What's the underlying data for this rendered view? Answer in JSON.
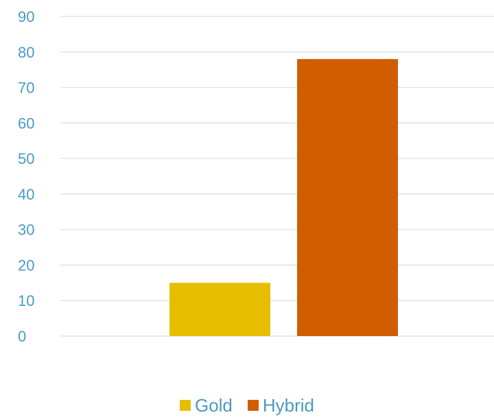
{
  "chart_data": {
    "type": "bar",
    "title": "",
    "xlabel": "",
    "ylabel": "",
    "ylim": [
      0,
      90
    ],
    "yticks": [
      0,
      10,
      20,
      30,
      40,
      50,
      60,
      70,
      80,
      90
    ],
    "grid": true,
    "legend_position": "bottom",
    "series": [
      {
        "name": "Gold",
        "value": 15,
        "color": "#E6BE00"
      },
      {
        "name": "Hybrid",
        "value": 78,
        "color": "#D05E00"
      }
    ]
  },
  "colors": {
    "gridline": "#D9E6EE",
    "axis_text": "#4A9BC0",
    "legend_text": "#4A9BC0"
  }
}
